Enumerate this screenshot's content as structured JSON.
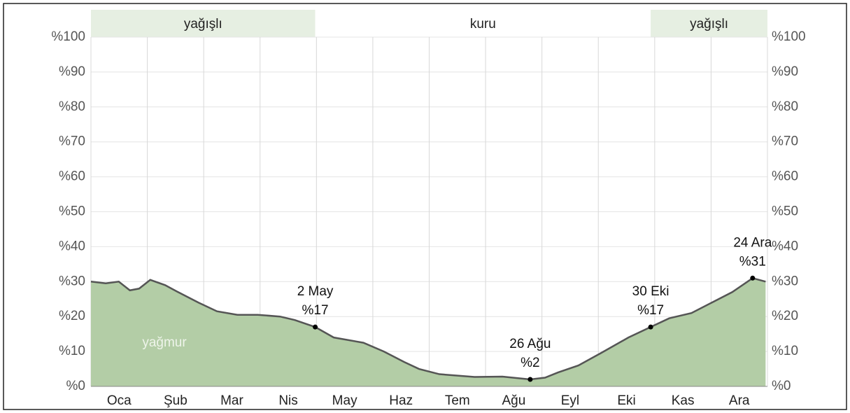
{
  "chart_data": {
    "type": "area",
    "categories": [
      "Oca",
      "Şub",
      "Mar",
      "Nis",
      "May",
      "Haz",
      "Tem",
      "Ağu",
      "Eyl",
      "Eki",
      "Kas",
      "Ara"
    ],
    "xlim": [
      1,
      366
    ],
    "ylim": [
      0,
      100
    ],
    "yticks": [
      {
        "value": 0,
        "label": "%0"
      },
      {
        "value": 10,
        "label": "%10"
      },
      {
        "value": 20,
        "label": "%20"
      },
      {
        "value": 30,
        "label": "%30"
      },
      {
        "value": 40,
        "label": "%40"
      },
      {
        "value": 50,
        "label": "%50"
      },
      {
        "value": 60,
        "label": "%60"
      },
      {
        "value": 70,
        "label": "%70"
      },
      {
        "value": 80,
        "label": "%80"
      },
      {
        "value": 90,
        "label": "%90"
      },
      {
        "value": 100,
        "label": "%100"
      }
    ],
    "grid": true,
    "series": [
      {
        "name": "yağmur",
        "color": "#b3cda6",
        "line_color": "#555555",
        "x": [
          1,
          9,
          16,
          22,
          27,
          33,
          41,
          48,
          59,
          69,
          80,
          91,
          103,
          111,
          122,
          132,
          148,
          159,
          170,
          178,
          189,
          208,
          223,
          238,
          246,
          253,
          264,
          276,
          291,
          303,
          313,
          325,
          336,
          347,
          358,
          365
        ],
        "values": [
          30,
          29.5,
          30,
          27.5,
          28,
          30.5,
          29,
          27,
          24,
          21.5,
          20.5,
          20.5,
          20,
          19,
          17,
          14,
          12.5,
          10,
          7,
          5,
          3.5,
          2.7,
          2.8,
          2,
          2.5,
          4,
          6,
          9.5,
          14,
          17,
          19.5,
          21,
          24,
          27,
          31,
          30
        ]
      }
    ],
    "annotations": [
      {
        "label": "2 May",
        "x": 122,
        "value": 17,
        "value_label": "%17"
      },
      {
        "label": "26 Ağu",
        "x": 238,
        "value": 2,
        "value_label": "%2"
      },
      {
        "label": "30 Eki",
        "x": 303,
        "value": 17,
        "value_label": "%17"
      },
      {
        "label": "24 Ara",
        "x": 358,
        "value": 31,
        "value_label": "%31"
      }
    ],
    "bands": [
      {
        "label": "yağışlı",
        "start": 1,
        "end": 122,
        "color": "#e6efe2"
      },
      {
        "label": "kuru",
        "start": 122,
        "end": 303,
        "color": "#ffffff"
      },
      {
        "label": "yağışlı",
        "start": 303,
        "end": 366,
        "color": "#e6efe2"
      }
    ]
  }
}
